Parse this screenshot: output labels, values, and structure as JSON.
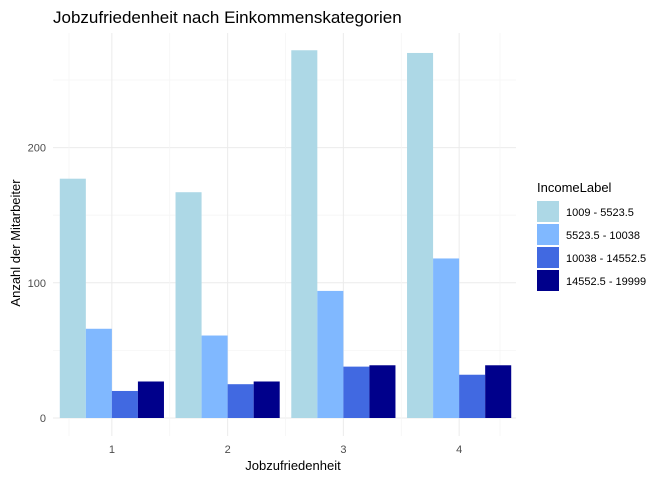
{
  "chart_data": {
    "type": "bar",
    "title": "Jobzufriedenheit nach Einkommenskategorien",
    "xlabel": "Jobzufriedenheit",
    "ylabel": "Anzahl der Mitarbeiter",
    "categories": [
      "1",
      "2",
      "3",
      "4"
    ],
    "ylim": [
      0,
      285
    ],
    "yticks": [
      0,
      100,
      200
    ],
    "grid": true,
    "legend": {
      "title": "IncomeLabel",
      "position": "right"
    },
    "series": [
      {
        "name": "1009 - 5523.5",
        "color": "#add8e6",
        "values": [
          177,
          167,
          272,
          270
        ]
      },
      {
        "name": "5523.5 - 10038",
        "color": "#80b8ff",
        "values": [
          66,
          61,
          94,
          118
        ]
      },
      {
        "name": "10038 - 14552.5",
        "color": "#4169e1",
        "values": [
          20,
          25,
          38,
          32
        ]
      },
      {
        "name": "14552.5 - 19999",
        "color": "#00008b",
        "values": [
          27,
          27,
          39,
          39
        ]
      }
    ]
  }
}
